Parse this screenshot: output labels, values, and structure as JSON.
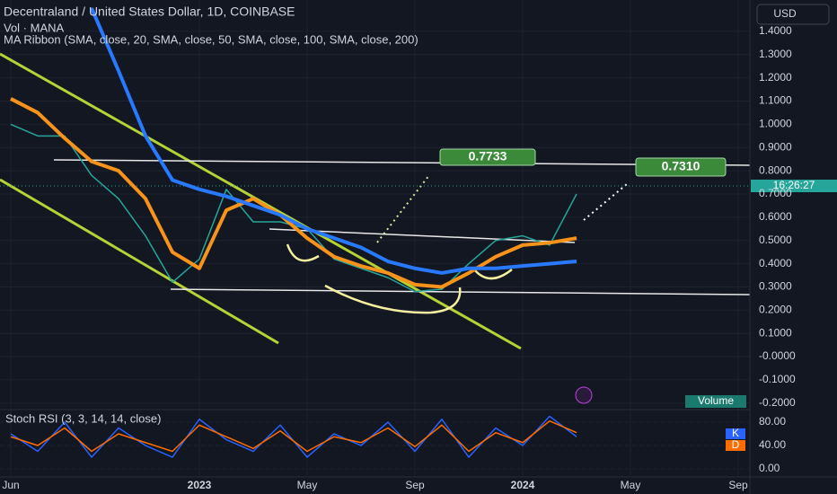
{
  "chart_data": [
    {
      "type": "line",
      "title": "Decentraland / United States Dollar, 1D, COINBASE",
      "subtitle": [
        "Vol · MANA",
        "MA Ribbon (SMA, close, 20, SMA, close, 50, SMA, close, 100, SMA, close, 200)"
      ],
      "currency": "USD",
      "countdown": "16:26:27",
      "volume_label": "Volume",
      "annotations": [
        "0.7733",
        "0.7310"
      ],
      "categories": [
        "Jun",
        null,
        null,
        null,
        null,
        null,
        null,
        "2023",
        null,
        null,
        null,
        "May",
        null,
        null,
        null,
        "Sep",
        null,
        null,
        null,
        "2024",
        null,
        null,
        null,
        "May",
        null,
        null,
        null,
        "Sep"
      ],
      "series": [
        {
          "color": "#26a69a",
          "values": [
            1.0,
            0.95,
            0.95,
            0.78,
            0.68,
            0.52,
            0.32,
            0.42,
            0.72,
            0.58,
            0.58,
            0.55,
            0.42,
            0.38,
            0.34,
            0.28,
            0.29,
            0.4,
            0.5,
            0.52,
            0.48,
            0.7,
            null,
            null,
            null,
            null,
            null,
            null
          ]
        },
        {
          "color": "#f7931a",
          "values": [
            1.11,
            1.05,
            0.94,
            0.84,
            0.8,
            0.68,
            0.45,
            0.38,
            0.63,
            0.68,
            0.61,
            0.51,
            0.43,
            0.39,
            0.36,
            0.31,
            0.3,
            0.36,
            0.43,
            0.48,
            0.49,
            0.51,
            null,
            null,
            null,
            null,
            null,
            null
          ]
        },
        {
          "color": "#2979ff",
          "values": [
            null,
            null,
            null,
            1.5,
            1.23,
            0.95,
            0.76,
            0.72,
            0.69,
            0.65,
            0.61,
            0.55,
            0.51,
            0.47,
            0.41,
            0.38,
            0.36,
            0.38,
            0.38,
            0.39,
            0.4,
            0.41,
            null,
            null,
            null,
            null,
            null,
            null
          ]
        }
      ],
      "ylim": [
        -0.224,
        1.535
      ],
      "yticks": [
        {
          "value": 1.4,
          "label": "1.4000"
        },
        {
          "value": 1.3,
          "label": "1.3000"
        },
        {
          "value": 1.2,
          "label": "1.2000"
        },
        {
          "value": 1.1,
          "label": "1.1000"
        },
        {
          "value": 1.0,
          "label": "1.0000"
        },
        {
          "value": 0.9,
          "label": "0.9000"
        },
        {
          "value": 0.8,
          "label": "0.8000"
        },
        {
          "value": 0.7,
          "label": "0.7000"
        },
        {
          "value": 0.6,
          "label": "0.6000"
        },
        {
          "value": 0.5,
          "label": "0.5000"
        },
        {
          "value": 0.4,
          "label": "0.4000"
        },
        {
          "value": 0.3,
          "label": "0.3000"
        },
        {
          "value": 0.2,
          "label": "0.2000"
        },
        {
          "value": 0.1,
          "label": "0.1000"
        },
        {
          "value": 0,
          "label": "-0.0000"
        },
        {
          "value": -0.1,
          "label": "-0.1000"
        },
        {
          "value": -0.2,
          "label": "-0.2000"
        }
      ],
      "grid": true
    },
    {
      "type": "line",
      "title": "Stoch RSI (3, 3, 14, 14, close)",
      "series": [
        {
          "name": "K",
          "color": "#2962ff",
          "values": [
            60,
            30,
            80,
            20,
            70,
            40,
            20,
            85,
            50,
            30,
            75,
            20,
            60,
            40,
            80,
            30,
            85,
            20,
            70,
            40,
            90,
            55,
            null,
            null,
            null,
            null,
            null,
            null
          ]
        },
        {
          "name": "D",
          "color": "#ff6d00",
          "values": [
            55,
            40,
            70,
            30,
            60,
            45,
            30,
            75,
            55,
            35,
            65,
            30,
            55,
            45,
            70,
            38,
            75,
            30,
            62,
            45,
            82,
            62,
            null,
            null,
            null,
            null,
            null,
            null
          ]
        }
      ],
      "ylim": [
        -12.3,
        100
      ],
      "yticks": [
        {
          "value": 80,
          "label": "80.00"
        },
        {
          "value": 40,
          "label": "40.00"
        },
        {
          "value": 0,
          "label": "0.00"
        }
      ],
      "grid": true
    }
  ]
}
